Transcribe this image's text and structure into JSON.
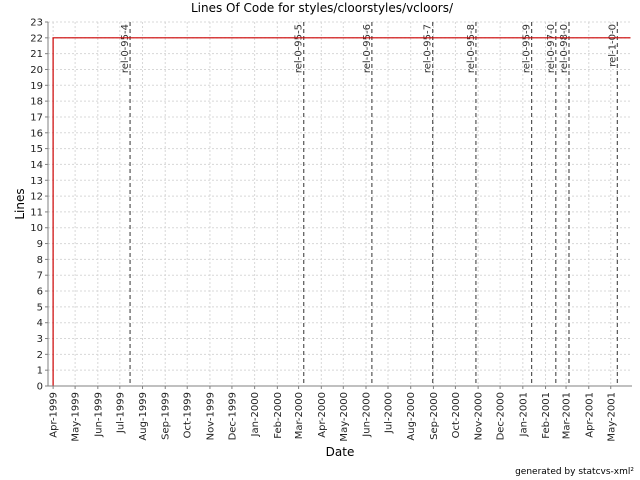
{
  "chart_data": {
    "type": "line",
    "title": "Lines Of Code for styles/cloorstyles/vcloors/",
    "xlabel": "Date",
    "ylabel": "Lines",
    "ylim": [
      0,
      23
    ],
    "yticks": [
      0,
      1,
      2,
      3,
      4,
      5,
      6,
      7,
      8,
      9,
      10,
      11,
      12,
      13,
      14,
      15,
      16,
      17,
      18,
      19,
      20,
      21,
      22,
      23
    ],
    "xlim": [
      "1999-03-25",
      "2001-05-30"
    ],
    "xticks": [
      {
        "label": "Apr-1999",
        "date": "1999-04-01"
      },
      {
        "label": "May-1999",
        "date": "1999-05-01"
      },
      {
        "label": "Jun-1999",
        "date": "1999-06-01"
      },
      {
        "label": "Jul-1999",
        "date": "1999-07-01"
      },
      {
        "label": "Aug-1999",
        "date": "1999-08-01"
      },
      {
        "label": "Sep-1999",
        "date": "1999-09-01"
      },
      {
        "label": "Oct-1999",
        "date": "1999-10-01"
      },
      {
        "label": "Nov-1999",
        "date": "1999-11-01"
      },
      {
        "label": "Dec-1999",
        "date": "1999-12-01"
      },
      {
        "label": "Jan-2000",
        "date": "2000-01-01"
      },
      {
        "label": "Feb-2000",
        "date": "2000-02-01"
      },
      {
        "label": "Mar-2000",
        "date": "2000-03-01"
      },
      {
        "label": "Apr-2000",
        "date": "2000-04-01"
      },
      {
        "label": "May-2000",
        "date": "2000-05-01"
      },
      {
        "label": "Jun-2000",
        "date": "2000-06-01"
      },
      {
        "label": "Jul-2000",
        "date": "2000-07-01"
      },
      {
        "label": "Aug-2000",
        "date": "2000-08-01"
      },
      {
        "label": "Sep-2000",
        "date": "2000-09-01"
      },
      {
        "label": "Oct-2000",
        "date": "2000-10-01"
      },
      {
        "label": "Nov-2000",
        "date": "2000-11-01"
      },
      {
        "label": "Dec-2000",
        "date": "2000-12-01"
      },
      {
        "label": "Jan-2001",
        "date": "2001-01-01"
      },
      {
        "label": "Feb-2001",
        "date": "2001-02-01"
      },
      {
        "label": "Mar-2001",
        "date": "2001-03-01"
      },
      {
        "label": "Apr-2001",
        "date": "2001-04-01"
      },
      {
        "label": "May-2001",
        "date": "2001-05-01"
      }
    ],
    "grid": true,
    "series": [
      {
        "color": "#cc0000",
        "points": [
          {
            "x": "1999-04-01",
            "y": 0
          },
          {
            "x": "1999-04-01",
            "y": 22
          },
          {
            "x": "2001-05-28",
            "y": 22
          }
        ]
      }
    ],
    "tags": [
      {
        "label": "rel-0-95-4",
        "date": "1999-07-15"
      },
      {
        "label": "rel-0-95-5",
        "date": "2000-03-08"
      },
      {
        "label": "rel-0-95-6",
        "date": "2000-06-09"
      },
      {
        "label": "rel-0-95-7",
        "date": "2000-08-31"
      },
      {
        "label": "rel-0-95-8",
        "date": "2000-10-29"
      },
      {
        "label": "rel-0-95-9",
        "date": "2001-01-13"
      },
      {
        "label": "rel-0-97-0",
        "date": "2001-02-15"
      },
      {
        "label": "rel-0-98-0",
        "date": "2001-03-05"
      },
      {
        "label": "rel-1-0-0",
        "date": "2001-05-10"
      }
    ],
    "tag_line_color": "#555555",
    "grid_color": "#d8d8d8",
    "credit": "generated by statcvs-xml²"
  }
}
